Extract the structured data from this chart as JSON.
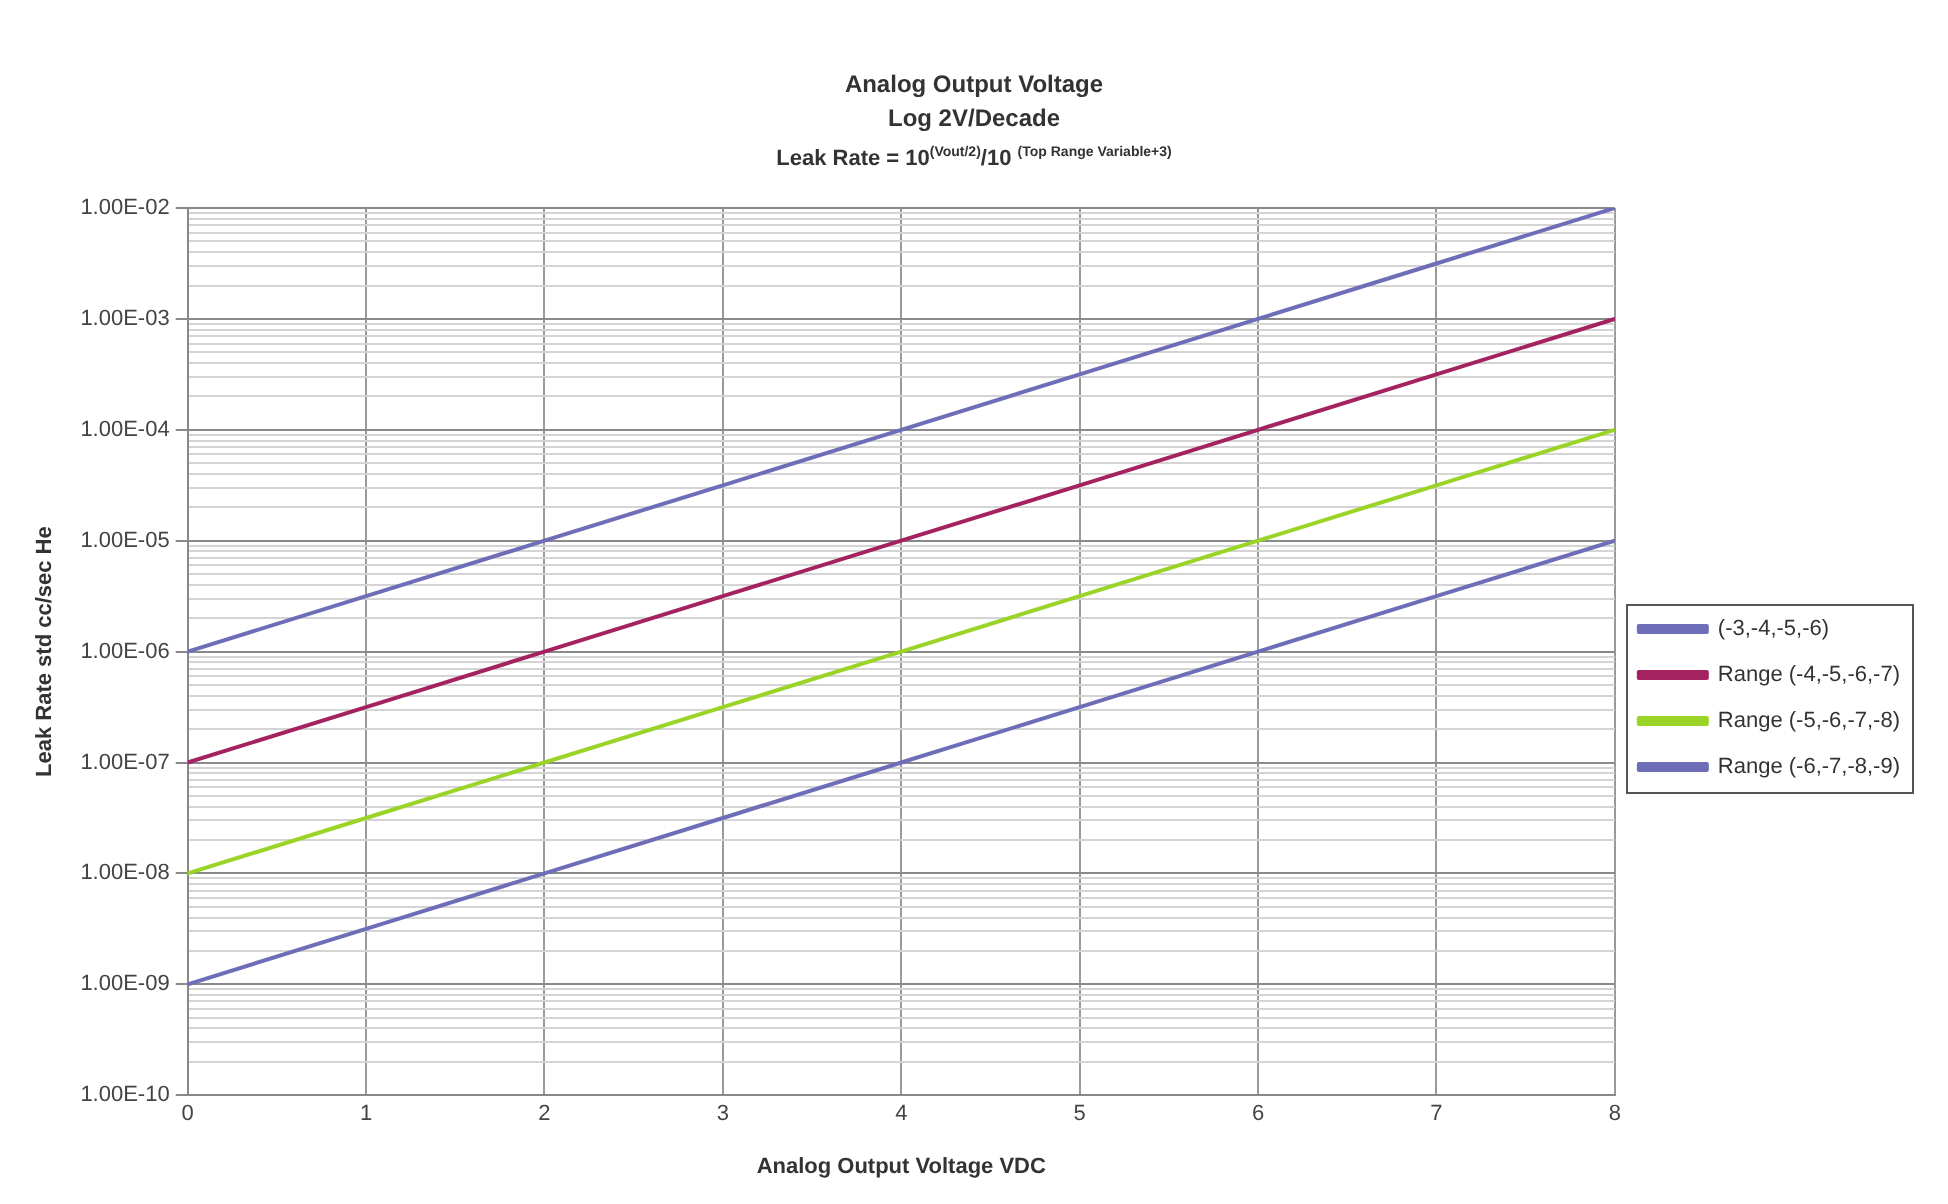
{
  "chart_data": {
    "type": "line",
    "title": "Analog Output Voltage",
    "subtitle": "Log 2V/Decade",
    "annotations": [
      "Leak Rate = 10$^{(Vout/2)}$/10 $^{(Top Range Variable+3)}$"
    ],
    "xlabel": "Analog Output Voltage VDC",
    "ylabel": "Leak Rate std cc/sec He",
    "x": [
      0,
      1,
      2,
      3,
      4,
      5,
      6,
      7,
      8
    ],
    "series": [
      {
        "name": "(-3,-4,-5,-6)",
        "color": "#6e6eb8",
        "values": [
          1e-06,
          3.16e-06,
          1e-05,
          3.16e-05,
          0.0001,
          0.000316,
          0.001,
          0.00316,
          0.01
        ]
      },
      {
        "name": "Range (-4,-5,-6,-7)",
        "color": "#a3225f",
        "values": [
          1e-07,
          3.16e-07,
          1e-06,
          3.16e-06,
          1e-05,
          3.16e-05,
          0.0001,
          0.000316,
          0.001
        ]
      },
      {
        "name": "Range (-5,-6,-7,-8)",
        "color": "#99d426",
        "values": [
          1e-08,
          3.16e-08,
          1e-07,
          3.16e-07,
          1e-06,
          3.16e-06,
          1e-05,
          3.16e-05,
          0.0001
        ]
      },
      {
        "name": "Range (-6,-7,-8,-9)",
        "color": "#6e6eb8",
        "values": [
          1e-09,
          3.16e-09,
          1e-08,
          3.16e-08,
          1e-07,
          3.16e-07,
          1e-06,
          3.16e-06,
          1e-05
        ]
      }
    ],
    "xlim": [
      0,
      8
    ],
    "xticks": [
      0,
      1,
      2,
      3,
      4,
      5,
      6,
      7,
      8
    ],
    "ylim": [
      1e-10,
      0.01
    ],
    "yticks": [
      {
        "value": 1e-10,
        "label": "1.00E-10"
      },
      {
        "value": 2e-10,
        "label": null
      },
      {
        "value": 3e-10,
        "label": null
      },
      {
        "value": 4e-10,
        "label": null
      },
      {
        "value": 5e-10,
        "label": null
      },
      {
        "value": 6e-10,
        "label": null
      },
      {
        "value": 7e-10,
        "label": null
      },
      {
        "value": 8e-10,
        "label": null
      },
      {
        "value": 9e-10,
        "label": null
      },
      {
        "value": 1e-09,
        "label": "1.00E-09"
      },
      {
        "value": 2e-09,
        "label": null
      },
      {
        "value": 3e-09,
        "label": null
      },
      {
        "value": 4e-09,
        "label": null
      },
      {
        "value": 5e-09,
        "label": null
      },
      {
        "value": 6e-09,
        "label": null
      },
      {
        "value": 7e-09,
        "label": null
      },
      {
        "value": 8e-09,
        "label": null
      },
      {
        "value": 9e-09,
        "label": null
      },
      {
        "value": 1e-08,
        "label": "1.00E-08"
      },
      {
        "value": 2e-08,
        "label": null
      },
      {
        "value": 3e-08,
        "label": null
      },
      {
        "value": 4e-08,
        "label": null
      },
      {
        "value": 5e-08,
        "label": null
      },
      {
        "value": 6e-08,
        "label": null
      },
      {
        "value": 7e-08,
        "label": null
      },
      {
        "value": 8e-08,
        "label": null
      },
      {
        "value": 9e-08,
        "label": null
      },
      {
        "value": 1e-07,
        "label": "1.00E-07"
      },
      {
        "value": 2e-07,
        "label": null
      },
      {
        "value": 3e-07,
        "label": null
      },
      {
        "value": 4e-07,
        "label": null
      },
      {
        "value": 5e-07,
        "label": null
      },
      {
        "value": 6e-07,
        "label": null
      },
      {
        "value": 7e-07,
        "label": null
      },
      {
        "value": 8e-07,
        "label": null
      },
      {
        "value": 9e-07,
        "label": null
      },
      {
        "value": 1e-06,
        "label": "1.00E-06"
      },
      {
        "value": 2e-06,
        "label": null
      },
      {
        "value": 3e-06,
        "label": null
      },
      {
        "value": 4e-06,
        "label": null
      },
      {
        "value": 5e-06,
        "label": null
      },
      {
        "value": 6e-06,
        "label": null
      },
      {
        "value": 7e-06,
        "label": null
      },
      {
        "value": 8e-06,
        "label": null
      },
      {
        "value": 9e-06,
        "label": null
      },
      {
        "value": 1e-05,
        "label": "1.00E-05"
      },
      {
        "value": 2e-05,
        "label": null
      },
      {
        "value": 3e-05,
        "label": null
      },
      {
        "value": 4e-05,
        "label": null
      },
      {
        "value": 5e-05,
        "label": null
      },
      {
        "value": 6e-05,
        "label": null
      },
      {
        "value": 7e-05,
        "label": null
      },
      {
        "value": 8e-05,
        "label": null
      },
      {
        "value": 9e-05,
        "label": null
      },
      {
        "value": 0.0001,
        "label": "1.00E-04"
      },
      {
        "value": 0.0002,
        "label": null
      },
      {
        "value": 0.0003,
        "label": null
      },
      {
        "value": 0.0004,
        "label": null
      },
      {
        "value": 0.0005,
        "label": null
      },
      {
        "value": 0.0006,
        "label": null
      },
      {
        "value": 0.0007,
        "label": null
      },
      {
        "value": 0.0008,
        "label": null
      },
      {
        "value": 0.0009,
        "label": null
      },
      {
        "value": 0.001,
        "label": "1.00E-03"
      },
      {
        "value": 0.002,
        "label": null
      },
      {
        "value": 0.003,
        "label": null
      },
      {
        "value": 0.004,
        "label": null
      },
      {
        "value": 0.005,
        "label": null
      },
      {
        "value": 0.006,
        "label": null
      },
      {
        "value": 0.007,
        "label": null
      },
      {
        "value": 0.008,
        "label": null
      },
      {
        "value": 0.009,
        "label": null
      },
      {
        "value": 0.01,
        "label": "1.00E-02"
      }
    ],
    "log": "y",
    "grid": true,
    "legend": "right",
    "marker": "none",
    "line_style": "solid"
  }
}
